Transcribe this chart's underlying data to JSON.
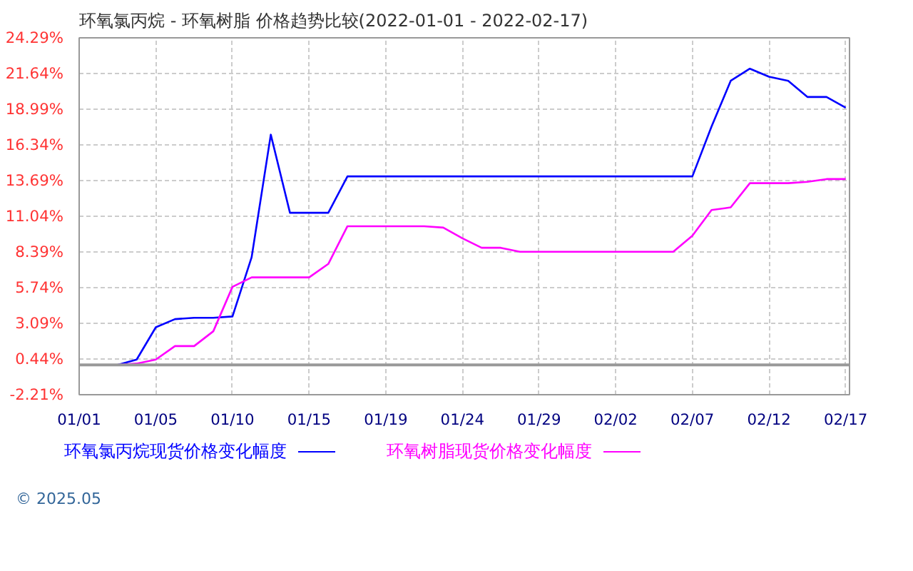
{
  "chart_data": {
    "type": "line",
    "title": "环氧氯丙烷 - 环氧树脂 价格趋势比较(2022-01-01 - 2022-02-17)",
    "categories": [
      "01/01",
      null,
      null,
      null,
      "01/05",
      null,
      null,
      null,
      "01/10",
      null,
      null,
      null,
      "01/15",
      null,
      null,
      null,
      "01/19",
      null,
      null,
      null,
      "01/24",
      null,
      null,
      null,
      "01/29",
      null,
      null,
      null,
      "02/02",
      null,
      null,
      null,
      "02/07",
      null,
      null,
      null,
      "02/12",
      null,
      null,
      null,
      "02/17"
    ],
    "ylim": [
      -2.21,
      24.29
    ],
    "yticks": [
      {
        "value": -2.21,
        "label": "-2.21%"
      },
      {
        "value": 0.44,
        "label": "0.44%"
      },
      {
        "value": 3.09,
        "label": "3.09%"
      },
      {
        "value": 5.74,
        "label": "5.74%"
      },
      {
        "value": 8.39,
        "label": "8.39%"
      },
      {
        "value": 11.04,
        "label": "11.04%"
      },
      {
        "value": 13.69,
        "label": "13.69%"
      },
      {
        "value": 16.34,
        "label": "16.34%"
      },
      {
        "value": 18.99,
        "label": "18.99%"
      },
      {
        "value": 21.64,
        "label": "21.64%"
      },
      {
        "value": 24.29,
        "label": "24.29%"
      }
    ],
    "grid": true,
    "legend": "bottom",
    "line_style": "solid",
    "ref_lines": [
      {
        "axis": "y",
        "value": 0,
        "color": "#999999"
      }
    ],
    "annotations": [
      "© 2025.05"
    ],
    "series": [
      {
        "name": "环氧氯丙烷现货价格变化幅度",
        "color": "#0000ff",
        "values": [
          0,
          0,
          0,
          0.4,
          2.8,
          3.4,
          3.5,
          3.5,
          3.6,
          8.0,
          17.1,
          11.3,
          11.3,
          11.3,
          14.0,
          14.0,
          14.0,
          14.0,
          14.0,
          14.0,
          14.0,
          14.0,
          14.0,
          14.0,
          14.0,
          14.0,
          14.0,
          14.0,
          14.0,
          14.0,
          14.0,
          14.0,
          14.0,
          17.7,
          21.1,
          22.0,
          21.4,
          21.1,
          19.9,
          19.9,
          19.1
        ]
      },
      {
        "name": "环氧树脂现货价格变化幅度",
        "color": "#ff00ff",
        "values": [
          0,
          0,
          0,
          0.1,
          0.4,
          1.4,
          1.4,
          2.5,
          5.8,
          6.5,
          6.5,
          6.5,
          6.5,
          7.5,
          10.3,
          10.3,
          10.3,
          10.3,
          10.3,
          10.2,
          9.4,
          8.7,
          8.7,
          8.4,
          8.4,
          8.4,
          8.4,
          8.4,
          8.4,
          8.4,
          8.4,
          8.4,
          9.6,
          11.5,
          11.7,
          13.5,
          13.5,
          13.5,
          13.6,
          13.8,
          13.8
        ]
      }
    ]
  }
}
